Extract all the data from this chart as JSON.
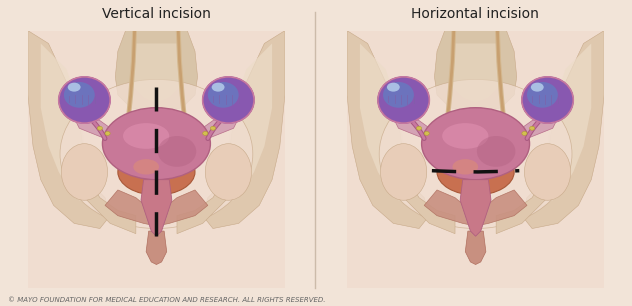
{
  "title_left": "Vertical incision",
  "title_right": "Horizontal incision",
  "copyright": "© MAYO FOUNDATION FOR MEDICAL EDUCATION AND RESEARCH. ALL RIGHTS RESERVED.",
  "bg_color": "#f2e4d8",
  "skin_light": "#f0ddd0",
  "skin_mid": "#e8cdb8",
  "skin_dark": "#dbb89a",
  "bone_light": "#ecdcc8",
  "bone_mid": "#dfc8ae",
  "bone_dark": "#c8aa8a",
  "sacrum_color": "#d8c4a8",
  "uterus_body": "#c87898",
  "uterus_dark": "#b06080",
  "uterus_light": "#e090b0",
  "bladder_color": "#c87050",
  "bladder_dark": "#a85838",
  "bladder_light": "#e09070",
  "cervix_color": "#d08878",
  "vagina_color": "#c87888",
  "ovary_purple": "#8858b0",
  "ovary_blue": "#6878c0",
  "ovary_light": "#a878c8",
  "tube_color": "#c878a0",
  "tube_dark": "#a85880",
  "ligament_color": "#d098b0",
  "muscle_color": "#c89080",
  "muscle_dark": "#b07060",
  "spine_color": "#d4b890",
  "incision_color": "#111111",
  "divider_color": "#ccbbaa",
  "title_fontsize": 10,
  "copyright_fontsize": 5
}
